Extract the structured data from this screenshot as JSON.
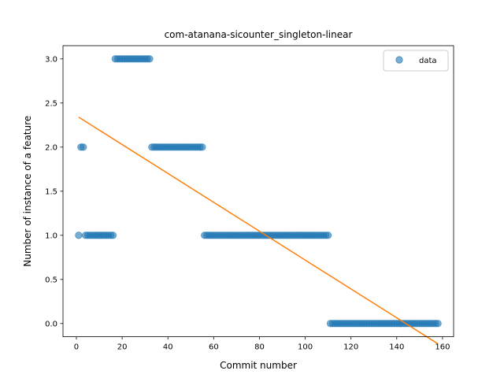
{
  "chart_data": {
    "type": "scatter",
    "title": "com-atanana-sicounter_singleton-linear",
    "xlabel": "Commit number",
    "ylabel": "Number of instance of a feature",
    "xlim": [
      -5.85,
      164.85
    ],
    "ylim": [
      -0.15,
      3.15
    ],
    "xticks": [
      0,
      20,
      40,
      60,
      80,
      100,
      120,
      140,
      160
    ],
    "yticks": [
      0.0,
      0.5,
      1.0,
      1.5,
      2.0,
      2.5,
      3.0
    ],
    "ytick_labels": [
      "0.0",
      "0.5",
      "1.0",
      "1.5",
      "2.0",
      "2.5",
      "3.0"
    ],
    "legend": {
      "position": "upper right",
      "entries": [
        "data"
      ]
    },
    "colors": {
      "data": "#1f77b4",
      "fit": "#ff7f0e"
    },
    "series": [
      {
        "name": "data",
        "kind": "scatter",
        "points": [
          [
            1,
            1
          ],
          [
            2,
            2
          ],
          [
            3,
            2
          ],
          [
            4,
            1
          ],
          [
            5,
            1
          ],
          [
            6,
            1
          ],
          [
            7,
            1
          ],
          [
            8,
            1
          ],
          [
            9,
            1
          ],
          [
            10,
            1
          ],
          [
            11,
            1
          ],
          [
            12,
            1
          ],
          [
            13,
            1
          ],
          [
            14,
            1
          ],
          [
            15,
            1
          ],
          [
            16,
            1
          ],
          [
            17,
            3
          ],
          [
            18,
            3
          ],
          [
            19,
            3
          ],
          [
            20,
            3
          ],
          [
            21,
            3
          ],
          [
            22,
            3
          ],
          [
            23,
            3
          ],
          [
            24,
            3
          ],
          [
            25,
            3
          ],
          [
            26,
            3
          ],
          [
            27,
            3
          ],
          [
            28,
            3
          ],
          [
            29,
            3
          ],
          [
            30,
            3
          ],
          [
            31,
            3
          ],
          [
            32,
            3
          ],
          [
            33,
            2
          ],
          [
            34,
            2
          ],
          [
            35,
            2
          ],
          [
            36,
            2
          ],
          [
            37,
            2
          ],
          [
            38,
            2
          ],
          [
            39,
            2
          ],
          [
            40,
            2
          ],
          [
            41,
            2
          ],
          [
            42,
            2
          ],
          [
            43,
            2
          ],
          [
            44,
            2
          ],
          [
            45,
            2
          ],
          [
            46,
            2
          ],
          [
            47,
            2
          ],
          [
            48,
            2
          ],
          [
            49,
            2
          ],
          [
            50,
            2
          ],
          [
            51,
            2
          ],
          [
            52,
            2
          ],
          [
            53,
            2
          ],
          [
            54,
            2
          ],
          [
            55,
            2
          ],
          [
            56,
            1
          ],
          [
            57,
            1
          ],
          [
            58,
            1
          ],
          [
            59,
            1
          ],
          [
            60,
            1
          ],
          [
            61,
            1
          ],
          [
            62,
            1
          ],
          [
            63,
            1
          ],
          [
            64,
            1
          ],
          [
            65,
            1
          ],
          [
            66,
            1
          ],
          [
            67,
            1
          ],
          [
            68,
            1
          ],
          [
            69,
            1
          ],
          [
            70,
            1
          ],
          [
            71,
            1
          ],
          [
            72,
            1
          ],
          [
            73,
            1
          ],
          [
            74,
            1
          ],
          [
            75,
            1
          ],
          [
            76,
            1
          ],
          [
            77,
            1
          ],
          [
            78,
            1
          ],
          [
            79,
            1
          ],
          [
            80,
            1
          ],
          [
            81,
            1
          ],
          [
            82,
            1
          ],
          [
            83,
            1
          ],
          [
            84,
            1
          ],
          [
            85,
            1
          ],
          [
            86,
            1
          ],
          [
            87,
            1
          ],
          [
            88,
            1
          ],
          [
            89,
            1
          ],
          [
            90,
            1
          ],
          [
            91,
            1
          ],
          [
            92,
            1
          ],
          [
            93,
            1
          ],
          [
            94,
            1
          ],
          [
            95,
            1
          ],
          [
            96,
            1
          ],
          [
            97,
            1
          ],
          [
            98,
            1
          ],
          [
            99,
            1
          ],
          [
            100,
            1
          ],
          [
            101,
            1
          ],
          [
            102,
            1
          ],
          [
            103,
            1
          ],
          [
            104,
            1
          ],
          [
            105,
            1
          ],
          [
            106,
            1
          ],
          [
            107,
            1
          ],
          [
            108,
            1
          ],
          [
            109,
            1
          ],
          [
            110,
            1
          ],
          [
            111,
            0
          ],
          [
            112,
            0
          ],
          [
            113,
            0
          ],
          [
            114,
            0
          ],
          [
            115,
            0
          ],
          [
            116,
            0
          ],
          [
            117,
            0
          ],
          [
            118,
            0
          ],
          [
            119,
            0
          ],
          [
            120,
            0
          ],
          [
            121,
            0
          ],
          [
            122,
            0
          ],
          [
            123,
            0
          ],
          [
            124,
            0
          ],
          [
            125,
            0
          ],
          [
            126,
            0
          ],
          [
            127,
            0
          ],
          [
            128,
            0
          ],
          [
            129,
            0
          ],
          [
            130,
            0
          ],
          [
            131,
            0
          ],
          [
            132,
            0
          ],
          [
            133,
            0
          ],
          [
            134,
            0
          ],
          [
            135,
            0
          ],
          [
            136,
            0
          ],
          [
            137,
            0
          ],
          [
            138,
            0
          ],
          [
            139,
            0
          ],
          [
            140,
            0
          ],
          [
            141,
            0
          ],
          [
            142,
            0
          ],
          [
            143,
            0
          ],
          [
            144,
            0
          ],
          [
            145,
            0
          ],
          [
            146,
            0
          ],
          [
            147,
            0
          ],
          [
            148,
            0
          ],
          [
            149,
            0
          ],
          [
            150,
            0
          ],
          [
            151,
            0
          ],
          [
            152,
            0
          ],
          [
            153,
            0
          ],
          [
            154,
            0
          ],
          [
            155,
            0
          ],
          [
            156,
            0
          ],
          [
            157,
            0
          ],
          [
            158,
            0
          ]
        ]
      },
      {
        "name": "",
        "kind": "line",
        "points": [
          [
            1,
            2.34
          ],
          [
            158,
            -0.23
          ]
        ]
      }
    ]
  }
}
